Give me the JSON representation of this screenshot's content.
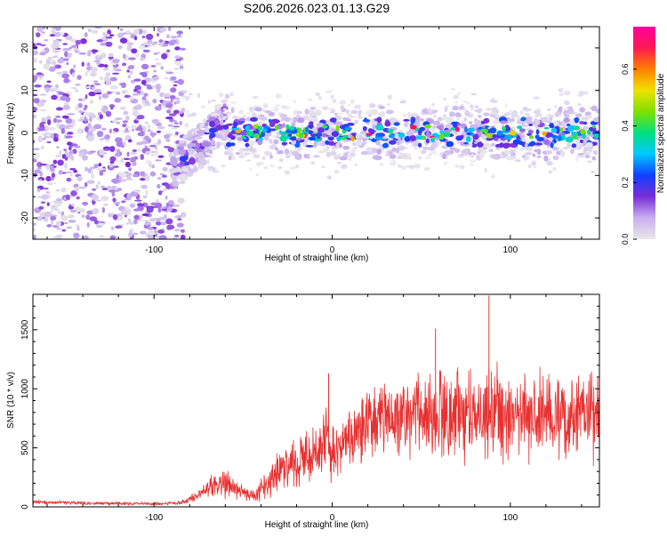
{
  "title": "S206.2026.023.01.13.G29",
  "colors": {
    "background": "#ffffff",
    "axis": "#000000",
    "snr_line": "#e83030",
    "colorbar": [
      "#e8e8e8",
      "#c8b0f0",
      "#7a2cd8",
      "#1040ff",
      "#00c8ff",
      "#00e080",
      "#80e000",
      "#f0e000",
      "#ff8000",
      "#ff1a50",
      "#ff00a0"
    ]
  },
  "chart_data": [
    {
      "id": "spectrogram",
      "type": "heatmap",
      "title": "S206.2026.023.01.13.G29",
      "xlabel": "Height of straight line (km)",
      "ylabel": "Frequency (Hz)",
      "xlim": [
        -168,
        150
      ],
      "ylim": [
        -25,
        25
      ],
      "xticks": [
        -100,
        0,
        100
      ],
      "yticks": [
        -20,
        -10,
        0,
        10,
        20
      ],
      "colorbar": {
        "label": "Normalized spectral amplitude",
        "range": [
          0,
          0.75
        ],
        "ticks": [
          "0.0",
          "0.2",
          "0.4",
          "0.6"
        ],
        "tick_values": [
          0.0,
          0.2,
          0.4,
          0.6
        ]
      },
      "regions": [
        {
          "name": "noise",
          "x_range": [
            -168,
            -83
          ],
          "freq_range": [
            -25,
            25
          ],
          "max_amplitude": 0.15
        },
        {
          "name": "onset",
          "x_range": [
            -90,
            -60
          ],
          "freq_center_start": -9,
          "freq_center_end": 3,
          "max_amplitude": 0.25
        },
        {
          "name": "signal_band",
          "x_range": [
            -60,
            150
          ],
          "freq_center": 0,
          "freq_halfwidth": 6,
          "max_amplitude": 0.75
        }
      ]
    },
    {
      "id": "snr",
      "type": "line",
      "xlabel": "Height of straight line (km)",
      "ylabel": "SNR (10 * v/v)",
      "xlim": [
        -168,
        150
      ],
      "ylim": [
        0,
        1800
      ],
      "xticks": [
        -100,
        0,
        100
      ],
      "yticks": [
        0,
        500,
        1000,
        1500
      ],
      "series": [
        {
          "name": "SNR",
          "x": [
            -168,
            -130,
            -100,
            -85,
            -75,
            -68,
            -62,
            -56,
            -50,
            -45,
            -40,
            -35,
            -30,
            -25,
            -20,
            -15,
            -10,
            -7,
            -5,
            -3,
            -1,
            0,
            5,
            10,
            15,
            20,
            30,
            40,
            50,
            60,
            70,
            80,
            88,
            100,
            110,
            120,
            130,
            140,
            150
          ],
          "mean": [
            40,
            30,
            25,
            35,
            100,
            170,
            200,
            170,
            120,
            90,
            150,
            220,
            300,
            330,
            380,
            420,
            480,
            560,
            620,
            700,
            420,
            500,
            520,
            580,
            640,
            700,
            730,
            740,
            760,
            780,
            790,
            800,
            800,
            790,
            790,
            780,
            770,
            760,
            760
          ],
          "spread": [
            20,
            15,
            15,
            20,
            60,
            110,
            140,
            120,
            90,
            70,
            110,
            160,
            200,
            230,
            260,
            280,
            300,
            330,
            400,
            400,
            250,
            280,
            300,
            320,
            350,
            380,
            400,
            420,
            440,
            460,
            460,
            460,
            460,
            460,
            450,
            440,
            430,
            420,
            420
          ],
          "peaks": [
            {
              "x": -2,
              "y": 1130
            },
            {
              "x": 88,
              "y": 1790
            },
            {
              "x": 58,
              "y": 1510
            }
          ]
        }
      ]
    }
  ]
}
